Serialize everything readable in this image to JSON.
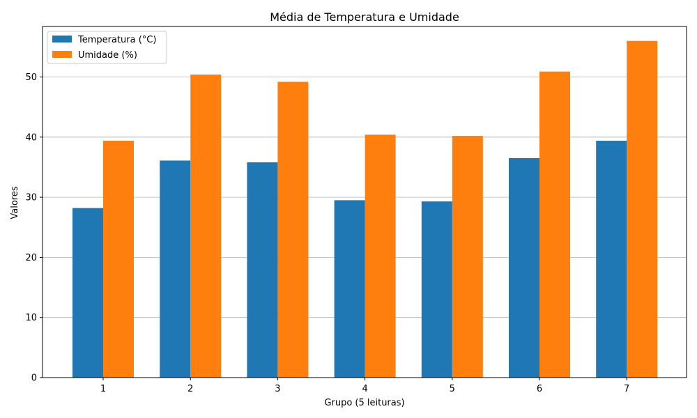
{
  "chart_data": {
    "type": "bar",
    "title": "Média de Temperatura e Umidade",
    "xlabel": "Grupo (5 leituras)",
    "ylabel": "Valores",
    "categories": [
      "1",
      "2",
      "3",
      "4",
      "5",
      "6",
      "7"
    ],
    "series": [
      {
        "name": "Temperatura (°C)",
        "color": "#1f77b4",
        "values": [
          28.2,
          36.1,
          35.8,
          29.5,
          29.3,
          36.5,
          39.4
        ]
      },
      {
        "name": "Umidade (%)",
        "color": "#ff7f0e",
        "values": [
          39.4,
          50.4,
          49.2,
          40.4,
          40.2,
          50.9,
          56.0
        ]
      }
    ],
    "ylim": [
      0,
      58.4
    ],
    "yticks": [
      0,
      10,
      20,
      30,
      40,
      50
    ],
    "grid": "y",
    "legend": "top-left"
  }
}
